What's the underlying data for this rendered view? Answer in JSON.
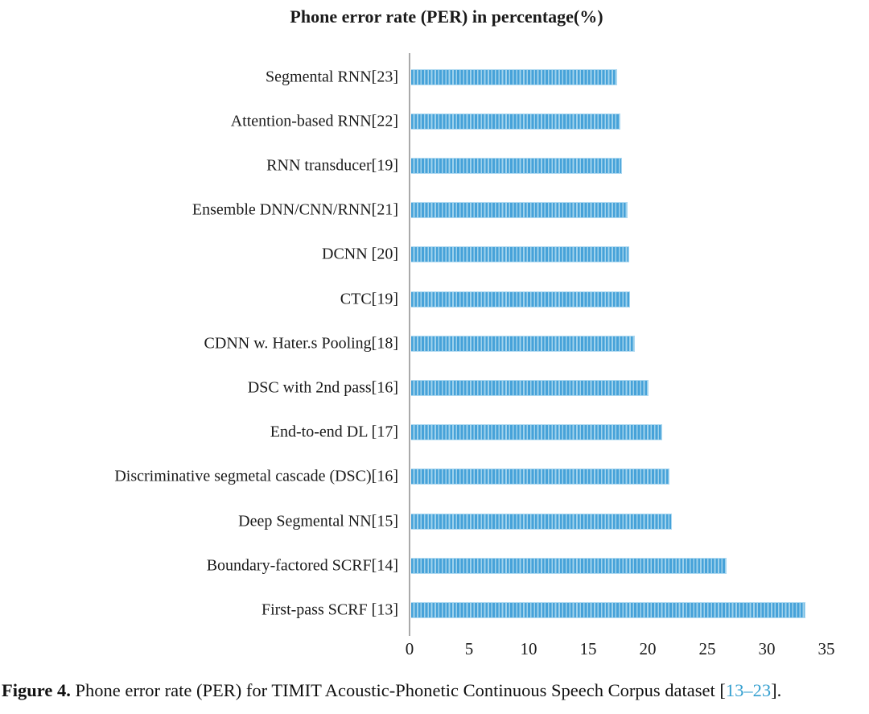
{
  "title": "Phone error rate (PER) in percentage(%)",
  "chart_data": {
    "type": "bar",
    "orientation": "horizontal",
    "title": "Phone error rate (PER) in percentage(%)",
    "categories": [
      "Segmental RNN[23]",
      "Attention-based RNN[22]",
      "RNN transducer[19]",
      "Ensemble DNN/CNN/RNN[21]",
      "DCNN [20]",
      "CTC[19]",
      "CDNN w. Hater.s Pooling[18]",
      "DSC with 2nd pass[16]",
      "End-to-end DL [17]",
      "Discriminative segmetal cascade (DSC)[16]",
      "Deep Segmental NN[15]",
      "Boundary-factored SCRF[14]",
      "First-pass SCRF [13]"
    ],
    "values": [
      17.3,
      17.6,
      17.7,
      18.2,
      18.3,
      18.4,
      18.8,
      19.9,
      21.1,
      21.7,
      21.9,
      26.5,
      33.1
    ],
    "xlabel": "",
    "ylabel": "",
    "xticks": [
      0,
      5,
      10,
      15,
      20,
      25,
      30,
      35
    ],
    "xlim": [
      0,
      35
    ],
    "grid": false,
    "legend_position": "none",
    "bar_color": "#46a2d9",
    "bar_stripe_light": "#a0d2ec",
    "axis_line_color": "#a9a9a9"
  },
  "caption": {
    "figure_label": "Figure 4.",
    "text": " Phone error rate (PER) for TIMIT Acoustic-Phonetic Continuous Speech Corpus dataset ",
    "bracket_open": "[",
    "link_text": "13–23",
    "bracket_close": "].",
    "link_color": "#35a0d0"
  }
}
